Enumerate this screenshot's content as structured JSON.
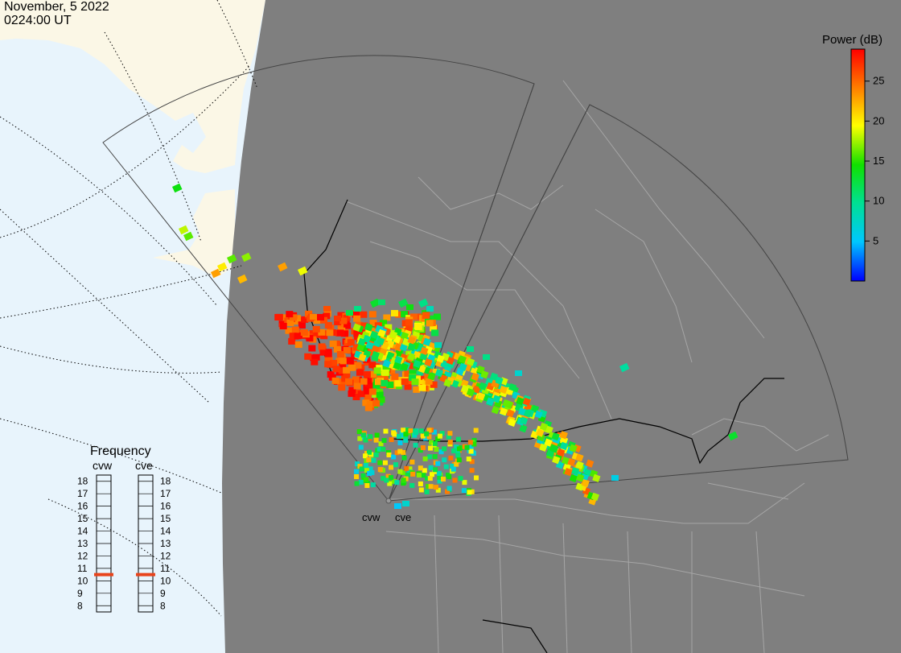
{
  "header": {
    "date": "November, 5 2022",
    "time": "0224:00 UT"
  },
  "colorbar": {
    "title": "Power (dB)",
    "ticks": [
      25,
      20,
      15,
      10,
      5
    ],
    "range": [
      0,
      29
    ],
    "stops": [
      "#0000ff",
      "#00c8ff",
      "#00e090",
      "#10e000",
      "#ffff00",
      "#ff8000",
      "#ff0000"
    ]
  },
  "frequency": {
    "title": "Frequency",
    "radars": [
      {
        "name": "cvw",
        "value_mhz": 10.5
      },
      {
        "name": "cve",
        "value_mhz": 10.5
      }
    ],
    "scale": [
      18,
      17,
      16,
      15,
      14,
      13,
      12,
      11,
      10,
      9,
      8
    ]
  },
  "radar_labels": [
    "cvw",
    "cve"
  ],
  "colors": {
    "ocean": "#e8f4fc",
    "land_night": "#7f7f7f",
    "land_day": "#fbf7e6",
    "indicator": "#e8441c"
  }
}
